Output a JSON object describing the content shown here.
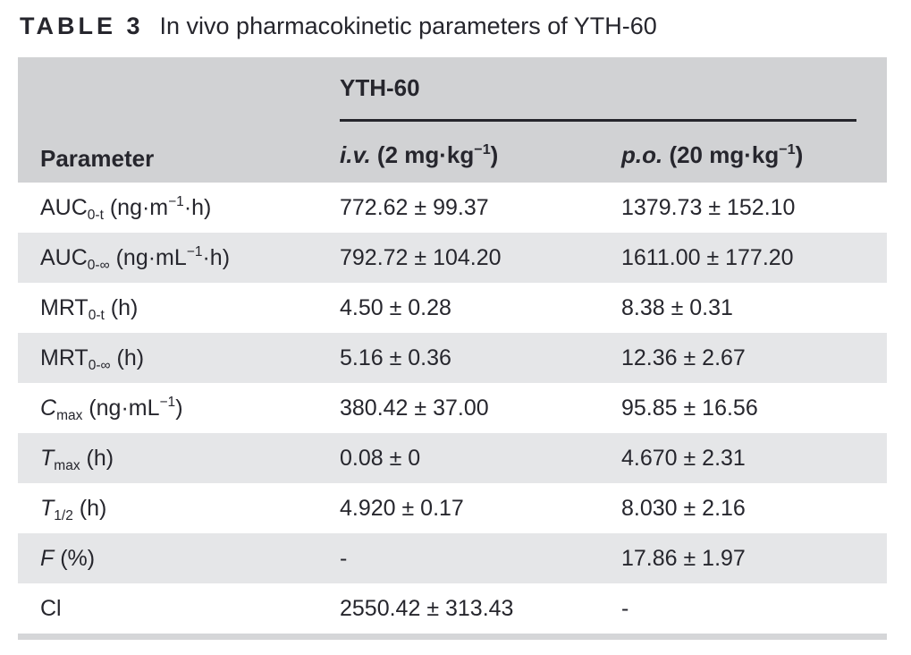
{
  "page": {
    "background": "#ffffff",
    "text_color": "#26262d"
  },
  "title": {
    "label": "TABLE 3",
    "text": "In vivo pharmacokinetic parameters of YTH-60"
  },
  "table": {
    "group_header": "YTH-60",
    "columns": [
      {
        "label": "Parameter"
      },
      {
        "label": "*i.v.* (2 mg·kg^{−1})"
      },
      {
        "label": "*p.o.* (20 mg·kg^{−1})"
      }
    ],
    "rows": [
      {
        "param": "AUC_{0-t} (ng·m^{−1}·h)",
        "iv": "772.62 ± 99.37",
        "po": "1379.73 ± 152.10"
      },
      {
        "param": "AUC_{0-∞} (ng·mL^{−1}·h)",
        "iv": "792.72 ± 104.20",
        "po": "1611.00 ± 177.20"
      },
      {
        "param": "MRT_{0-t} (h)",
        "iv": "4.50 ± 0.28",
        "po": "8.38 ± 0.31"
      },
      {
        "param": "MRT_{0-∞} (h)",
        "iv": "5.16 ± 0.36",
        "po": "12.36 ± 2.67"
      },
      {
        "param": "*C*_{max} (ng·mL^{−1})",
        "iv": "380.42 ± 37.00",
        "po": "95.85 ± 16.56"
      },
      {
        "param": "*T*_{max} (h)",
        "iv": "0.08 ± 0",
        "po": "4.670 ± 2.31"
      },
      {
        "param": "*T*_{1/2} (h)",
        "iv": "4.920 ± 0.17",
        "po": "8.030 ± 2.16"
      },
      {
        "param": "*F* (%)",
        "iv": "-",
        "po": "17.86 ± 1.97"
      },
      {
        "param": "Cl",
        "iv": "2550.42 ± 313.43",
        "po": "-"
      }
    ],
    "colors": {
      "header_bg": "#d1d2d4",
      "row_alt_bg": "#e5e6e8",
      "row_bg": "#ffffff",
      "rule": "#26262c",
      "bottom_bar": "#d5d6d8",
      "text": "#26262d"
    }
  }
}
